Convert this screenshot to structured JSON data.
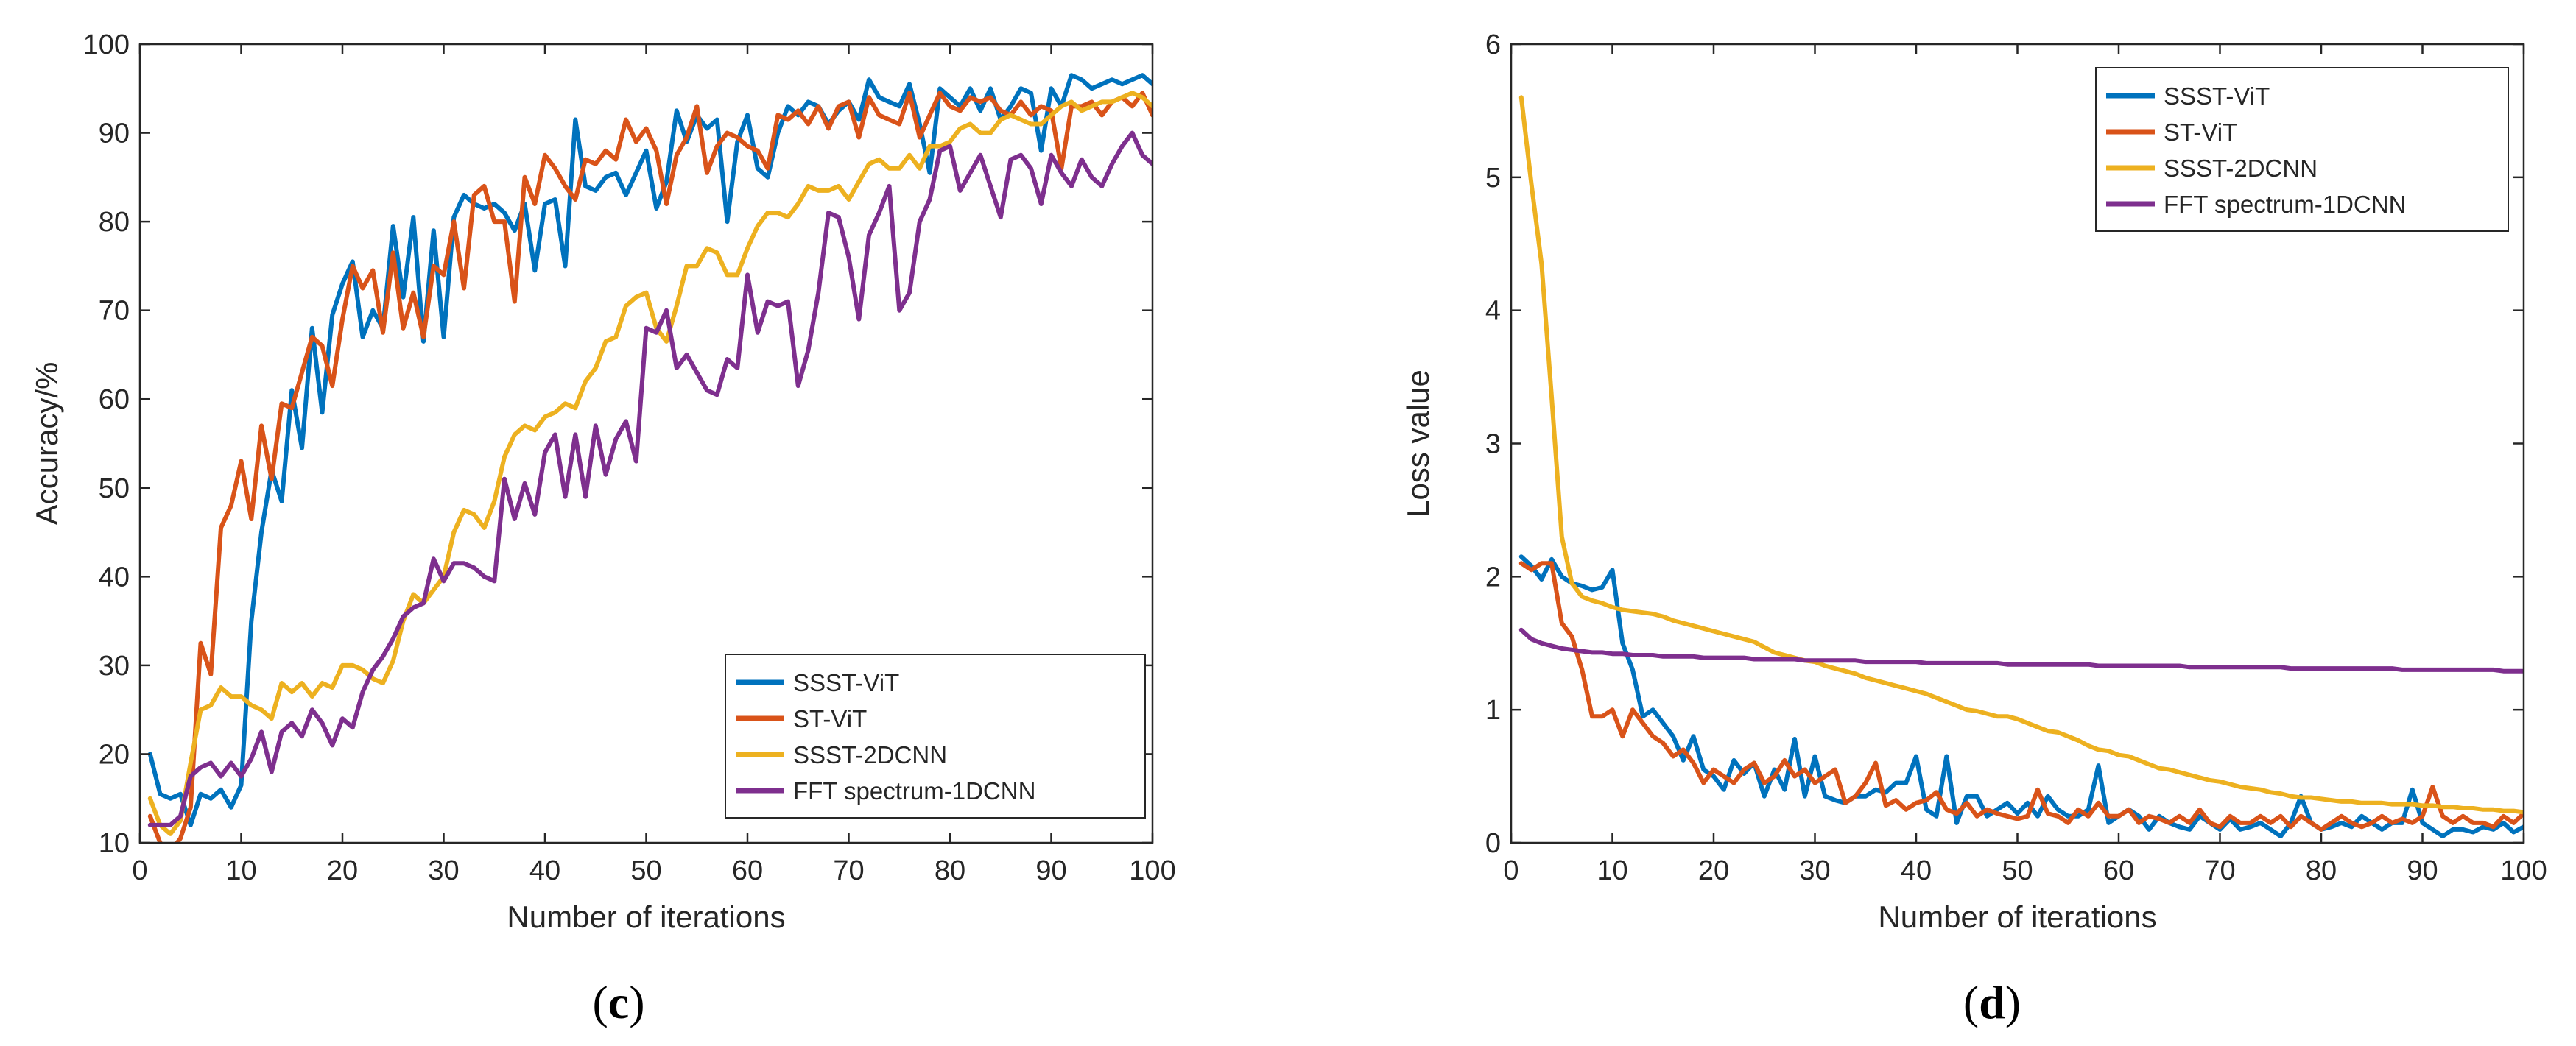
{
  "chart_data": [
    {
      "type": "line",
      "panel_label": "c",
      "panel_open": "(",
      "panel_close": ")",
      "xlabel": "Number of iterations",
      "ylabel": "Accuracy/%",
      "xlim": [
        0,
        100
      ],
      "ylim": [
        10,
        100
      ],
      "xticks": [
        0,
        10,
        20,
        30,
        40,
        50,
        60,
        70,
        80,
        90,
        100
      ],
      "yticks": [
        10,
        20,
        30,
        40,
        50,
        60,
        70,
        80,
        90,
        100
      ],
      "legend_position": "bottom-right",
      "x": [
        1,
        2,
        3,
        4,
        5,
        6,
        7,
        8,
        9,
        10,
        11,
        12,
        13,
        14,
        15,
        16,
        17,
        18,
        19,
        20,
        21,
        22,
        23,
        24,
        25,
        26,
        27,
        28,
        29,
        30,
        31,
        32,
        33,
        34,
        35,
        36,
        37,
        38,
        39,
        40,
        41,
        42,
        43,
        44,
        45,
        46,
        47,
        48,
        49,
        50,
        51,
        52,
        53,
        54,
        55,
        56,
        57,
        58,
        59,
        60,
        61,
        62,
        63,
        64,
        65,
        66,
        67,
        68,
        69,
        70,
        71,
        72,
        73,
        74,
        75,
        76,
        77,
        78,
        79,
        80,
        81,
        82,
        83,
        84,
        85,
        86,
        87,
        88,
        89,
        90,
        91,
        92,
        93,
        94,
        95,
        96,
        97,
        98,
        99,
        100
      ],
      "series": [
        {
          "name": "SSST-ViT",
          "color": "#0072BD",
          "values": [
            20,
            15.5,
            15,
            15.5,
            12,
            15.5,
            15,
            16,
            14,
            16.5,
            35,
            45,
            52,
            48.5,
            61,
            54.5,
            68,
            58.5,
            69.5,
            73,
            75.5,
            67,
            70,
            68,
            79.5,
            71.5,
            80.5,
            66.5,
            79,
            67,
            80.5,
            83,
            82,
            81.5,
            82,
            81,
            79,
            82,
            74.5,
            82,
            82.5,
            75,
            91.5,
            84,
            83.5,
            85,
            85.5,
            83,
            85.5,
            88,
            81.5,
            84.5,
            92.5,
            89,
            92,
            90.5,
            91.5,
            80,
            89,
            92,
            86,
            85,
            90,
            93,
            92,
            93.5,
            93,
            91,
            92.5,
            93.5,
            91.5,
            96,
            94,
            93.5,
            93,
            95.5,
            91,
            85.5,
            95,
            94,
            93,
            95,
            92.5,
            95,
            91.5,
            93,
            95,
            94.5,
            88,
            95,
            93,
            96.5,
            96,
            95,
            95.5,
            96,
            95.5,
            96,
            96.5,
            95.5
          ]
        },
        {
          "name": "ST-ViT",
          "color": "#D95319",
          "values": [
            13,
            10,
            9,
            10.5,
            14,
            32.5,
            29,
            45.5,
            48,
            53,
            46.5,
            57,
            51,
            59.5,
            59,
            63,
            67,
            66,
            61.5,
            69,
            75,
            72.5,
            74.5,
            67.5,
            76.5,
            68,
            72,
            67,
            75,
            74,
            80,
            72.5,
            83,
            84,
            80,
            80,
            71,
            85,
            82,
            87.5,
            86,
            84,
            82.5,
            87,
            86.5,
            88,
            87,
            91.5,
            89,
            90.5,
            88,
            82,
            87.5,
            89.5,
            93,
            85.5,
            88.5,
            90,
            89.5,
            88.5,
            88,
            86,
            92,
            91.5,
            92.5,
            91,
            93,
            90.5,
            93,
            93.5,
            89.5,
            94,
            92,
            91.5,
            91,
            94.5,
            89.5,
            92,
            94.5,
            93,
            92.5,
            94,
            93.5,
            94,
            92.5,
            92,
            93.5,
            92,
            93,
            92.5,
            86,
            93,
            93,
            93.5,
            92,
            93.5,
            94,
            93,
            94.5,
            92
          ]
        },
        {
          "name": "SSST-2DCNN",
          "color": "#EDB120",
          "values": [
            15,
            12,
            11,
            12.5,
            19,
            25,
            25.5,
            27.5,
            26.5,
            26.5,
            25.5,
            25,
            24,
            28,
            27,
            28,
            26.5,
            28,
            27.5,
            30,
            30,
            29.5,
            28.5,
            28,
            30.5,
            35,
            38,
            37,
            38.5,
            40,
            45,
            47.5,
            47,
            45.5,
            48.5,
            53.5,
            56,
            57,
            56.5,
            58,
            58.5,
            59.5,
            59,
            62,
            63.5,
            66.5,
            67,
            70.5,
            71.5,
            72,
            68,
            66.5,
            70.5,
            75,
            75,
            77,
            76.5,
            74,
            74,
            77,
            79.5,
            81,
            81,
            80.5,
            82,
            84,
            83.5,
            83.5,
            84,
            82.5,
            84.5,
            86.5,
            87,
            86,
            86,
            87.5,
            86,
            88.5,
            88.5,
            89,
            90.5,
            91,
            90,
            90,
            91.5,
            92,
            91.5,
            91,
            91,
            92,
            93,
            93.5,
            92.5,
            93,
            93.5,
            93.5,
            94,
            94.5,
            94,
            93
          ]
        },
        {
          "name": "FFT spectrum-1DCNN",
          "color": "#7E2F8E",
          "values": [
            12,
            12,
            12,
            13,
            17.5,
            18.5,
            19,
            17.5,
            19,
            17.5,
            19.5,
            22.5,
            18,
            22.5,
            23.5,
            22,
            25,
            23.5,
            21,
            24,
            23,
            27,
            29.5,
            31,
            33,
            35.5,
            36.5,
            37,
            42,
            39.5,
            41.5,
            41.5,
            41,
            40,
            39.5,
            51,
            46.5,
            50.5,
            47,
            54,
            56,
            49,
            56,
            49,
            57,
            51.5,
            55.5,
            57.5,
            53,
            68,
            67.5,
            70,
            63.5,
            65,
            63,
            61,
            60.5,
            64.5,
            63.5,
            74,
            67.5,
            71,
            70.5,
            71,
            61.5,
            65.5,
            72,
            81,
            80.5,
            76,
            69,
            78.5,
            81,
            84,
            70,
            72,
            80,
            82.5,
            88,
            88.5,
            83.5,
            85.5,
            87.5,
            84,
            80.5,
            87,
            87.5,
            86,
            82,
            87.5,
            85.5,
            84,
            87,
            85,
            84,
            86.5,
            88.5,
            90,
            87.5,
            86.5
          ]
        }
      ]
    },
    {
      "type": "line",
      "panel_label": "d",
      "panel_open": "(",
      "panel_close": ")",
      "xlabel": "Number of iterations",
      "ylabel": "Loss value",
      "xlim": [
        0,
        100
      ],
      "ylim": [
        0,
        6
      ],
      "xticks": [
        0,
        10,
        20,
        30,
        40,
        50,
        60,
        70,
        80,
        90,
        100
      ],
      "yticks": [
        0,
        1,
        2,
        3,
        4,
        5,
        6
      ],
      "legend_position": "top-right",
      "x": [
        1,
        2,
        3,
        4,
        5,
        6,
        7,
        8,
        9,
        10,
        11,
        12,
        13,
        14,
        15,
        16,
        17,
        18,
        19,
        20,
        21,
        22,
        23,
        24,
        25,
        26,
        27,
        28,
        29,
        30,
        31,
        32,
        33,
        34,
        35,
        36,
        37,
        38,
        39,
        40,
        41,
        42,
        43,
        44,
        45,
        46,
        47,
        48,
        49,
        50,
        51,
        52,
        53,
        54,
        55,
        56,
        57,
        58,
        59,
        60,
        61,
        62,
        63,
        64,
        65,
        66,
        67,
        68,
        69,
        70,
        71,
        72,
        73,
        74,
        75,
        76,
        77,
        78,
        79,
        80,
        81,
        82,
        83,
        84,
        85,
        86,
        87,
        88,
        89,
        90,
        91,
        92,
        93,
        94,
        95,
        96,
        97,
        98,
        99,
        100
      ],
      "series": [
        {
          "name": "SSST-ViT",
          "color": "#0072BD",
          "values": [
            2.15,
            2.08,
            1.98,
            2.13,
            2.0,
            1.95,
            1.93,
            1.9,
            1.92,
            2.05,
            1.5,
            1.3,
            0.95,
            1.0,
            0.9,
            0.8,
            0.62,
            0.8,
            0.55,
            0.5,
            0.4,
            0.62,
            0.52,
            0.6,
            0.35,
            0.55,
            0.4,
            0.78,
            0.35,
            0.65,
            0.35,
            0.32,
            0.3,
            0.35,
            0.35,
            0.4,
            0.38,
            0.45,
            0.45,
            0.65,
            0.25,
            0.2,
            0.65,
            0.15,
            0.35,
            0.35,
            0.2,
            0.25,
            0.3,
            0.22,
            0.3,
            0.2,
            0.35,
            0.25,
            0.2,
            0.2,
            0.25,
            0.58,
            0.15,
            0.2,
            0.25,
            0.2,
            0.1,
            0.2,
            0.15,
            0.12,
            0.1,
            0.2,
            0.15,
            0.1,
            0.18,
            0.1,
            0.12,
            0.15,
            0.1,
            0.05,
            0.15,
            0.35,
            0.15,
            0.1,
            0.12,
            0.15,
            0.12,
            0.2,
            0.15,
            0.1,
            0.15,
            0.15,
            0.4,
            0.15,
            0.1,
            0.05,
            0.1,
            0.1,
            0.08,
            0.12,
            0.1,
            0.15,
            0.08,
            0.12
          ]
        },
        {
          "name": "ST-ViT",
          "color": "#D95319",
          "values": [
            2.1,
            2.05,
            2.1,
            2.1,
            1.65,
            1.55,
            1.3,
            0.95,
            0.95,
            1.0,
            0.8,
            1.0,
            0.9,
            0.8,
            0.75,
            0.65,
            0.7,
            0.6,
            0.45,
            0.55,
            0.5,
            0.45,
            0.55,
            0.6,
            0.45,
            0.5,
            0.62,
            0.5,
            0.55,
            0.45,
            0.5,
            0.55,
            0.3,
            0.35,
            0.45,
            0.6,
            0.28,
            0.32,
            0.25,
            0.3,
            0.32,
            0.38,
            0.25,
            0.22,
            0.3,
            0.2,
            0.25,
            0.22,
            0.2,
            0.18,
            0.2,
            0.4,
            0.22,
            0.2,
            0.15,
            0.25,
            0.2,
            0.3,
            0.2,
            0.2,
            0.25,
            0.15,
            0.2,
            0.18,
            0.15,
            0.2,
            0.15,
            0.25,
            0.15,
            0.12,
            0.2,
            0.15,
            0.15,
            0.2,
            0.15,
            0.2,
            0.12,
            0.2,
            0.15,
            0.1,
            0.15,
            0.2,
            0.15,
            0.12,
            0.15,
            0.2,
            0.15,
            0.18,
            0.15,
            0.2,
            0.42,
            0.2,
            0.15,
            0.2,
            0.15,
            0.15,
            0.12,
            0.2,
            0.15,
            0.22
          ]
        },
        {
          "name": "SSST-2DCNN",
          "color": "#EDB120",
          "values": [
            5.6,
            4.95,
            4.35,
            3.35,
            2.3,
            1.95,
            1.85,
            1.82,
            1.8,
            1.77,
            1.75,
            1.74,
            1.73,
            1.72,
            1.7,
            1.67,
            1.65,
            1.63,
            1.61,
            1.59,
            1.57,
            1.55,
            1.53,
            1.51,
            1.47,
            1.43,
            1.41,
            1.39,
            1.37,
            1.36,
            1.33,
            1.31,
            1.29,
            1.27,
            1.24,
            1.22,
            1.2,
            1.18,
            1.16,
            1.14,
            1.12,
            1.09,
            1.06,
            1.03,
            1.0,
            0.99,
            0.97,
            0.95,
            0.95,
            0.93,
            0.9,
            0.87,
            0.84,
            0.83,
            0.8,
            0.77,
            0.73,
            0.7,
            0.69,
            0.66,
            0.65,
            0.62,
            0.59,
            0.56,
            0.55,
            0.53,
            0.51,
            0.49,
            0.47,
            0.46,
            0.44,
            0.42,
            0.41,
            0.4,
            0.38,
            0.37,
            0.35,
            0.34,
            0.34,
            0.33,
            0.32,
            0.31,
            0.31,
            0.3,
            0.3,
            0.3,
            0.29,
            0.29,
            0.29,
            0.28,
            0.28,
            0.27,
            0.27,
            0.26,
            0.26,
            0.25,
            0.25,
            0.24,
            0.24,
            0.23
          ]
        },
        {
          "name": "FFT spectrum-1DCNN",
          "color": "#7E2F8E",
          "values": [
            1.6,
            1.53,
            1.5,
            1.48,
            1.46,
            1.45,
            1.44,
            1.43,
            1.43,
            1.42,
            1.42,
            1.41,
            1.41,
            1.41,
            1.4,
            1.4,
            1.4,
            1.4,
            1.39,
            1.39,
            1.39,
            1.39,
            1.39,
            1.38,
            1.38,
            1.38,
            1.38,
            1.38,
            1.37,
            1.37,
            1.37,
            1.37,
            1.37,
            1.37,
            1.36,
            1.36,
            1.36,
            1.36,
            1.36,
            1.36,
            1.35,
            1.35,
            1.35,
            1.35,
            1.35,
            1.35,
            1.35,
            1.35,
            1.34,
            1.34,
            1.34,
            1.34,
            1.34,
            1.34,
            1.34,
            1.34,
            1.34,
            1.33,
            1.33,
            1.33,
            1.33,
            1.33,
            1.33,
            1.33,
            1.33,
            1.33,
            1.32,
            1.32,
            1.32,
            1.32,
            1.32,
            1.32,
            1.32,
            1.32,
            1.32,
            1.32,
            1.31,
            1.31,
            1.31,
            1.31,
            1.31,
            1.31,
            1.31,
            1.31,
            1.31,
            1.31,
            1.31,
            1.3,
            1.3,
            1.3,
            1.3,
            1.3,
            1.3,
            1.3,
            1.3,
            1.3,
            1.3,
            1.29,
            1.29,
            1.29
          ]
        }
      ]
    }
  ]
}
